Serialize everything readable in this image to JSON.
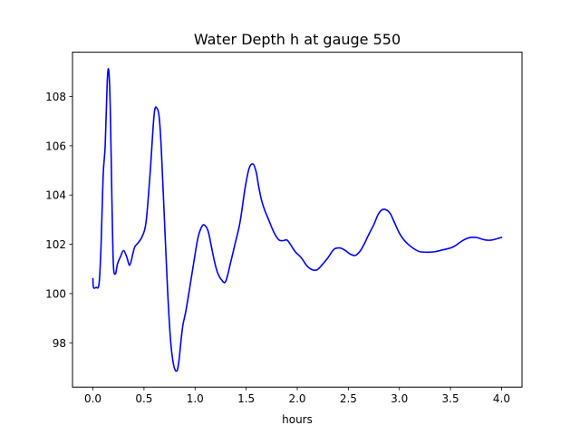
{
  "chart_data": {
    "type": "line",
    "title": "Water Depth h at gauge 550",
    "xlabel": "hours",
    "ylabel": "",
    "xlim": [
      -0.2,
      4.2
    ],
    "ylim": [
      96.2,
      109.8
    ],
    "xticks": [
      0.0,
      0.5,
      1.0,
      1.5,
      2.0,
      2.5,
      3.0,
      3.5,
      4.0
    ],
    "xtick_labels": [
      "0.0",
      "0.5",
      "1.0",
      "1.5",
      "2.0",
      "2.5",
      "3.0",
      "3.5",
      "4.0"
    ],
    "yticks": [
      98,
      100,
      102,
      104,
      106,
      108
    ],
    "ytick_labels": [
      "98",
      "100",
      "102",
      "104",
      "106",
      "108"
    ],
    "grid": false,
    "series": [
      {
        "color": "#0000ff",
        "x": [
          0.0,
          0.005,
          0.03,
          0.06,
          0.08,
          0.1,
          0.12,
          0.14,
          0.155,
          0.17,
          0.185,
          0.2,
          0.22,
          0.24,
          0.27,
          0.3,
          0.33,
          0.36,
          0.39,
          0.41,
          0.44,
          0.48,
          0.52,
          0.56,
          0.6,
          0.63,
          0.65,
          0.67,
          0.7,
          0.73,
          0.76,
          0.79,
          0.82,
          0.84,
          0.86,
          0.88,
          0.91,
          0.95,
          1.0,
          1.03,
          1.07,
          1.1,
          1.13,
          1.16,
          1.19,
          1.22,
          1.26,
          1.3,
          1.35,
          1.39,
          1.44,
          1.49,
          1.53,
          1.57,
          1.6,
          1.62,
          1.65,
          1.68,
          1.72,
          1.77,
          1.82,
          1.86,
          1.9,
          1.94,
          1.98,
          2.04,
          2.1,
          2.16,
          2.2,
          2.24,
          2.3,
          2.36,
          2.42,
          2.47,
          2.52,
          2.57,
          2.62,
          2.66,
          2.7,
          2.75,
          2.79,
          2.83,
          2.87,
          2.91,
          2.95,
          3.0,
          3.05,
          3.1,
          3.15,
          3.2,
          3.28,
          3.35,
          3.43,
          3.5,
          3.55,
          3.6,
          3.65,
          3.7,
          3.75,
          3.8,
          3.85,
          3.9,
          3.95,
          4.0
        ],
        "y": [
          100.6,
          100.25,
          100.25,
          100.4,
          102.0,
          104.8,
          106.0,
          108.6,
          109.05,
          107.5,
          104.0,
          101.2,
          100.8,
          101.2,
          101.5,
          101.75,
          101.5,
          101.15,
          101.6,
          101.9,
          102.05,
          102.3,
          102.9,
          104.9,
          107.3,
          107.5,
          107.1,
          105.8,
          103.0,
          100.2,
          98.1,
          97.1,
          96.85,
          97.2,
          98.0,
          98.7,
          99.3,
          100.3,
          101.6,
          102.3,
          102.75,
          102.75,
          102.5,
          101.9,
          101.3,
          100.85,
          100.55,
          100.5,
          101.3,
          102.0,
          102.9,
          104.3,
          105.1,
          105.25,
          104.9,
          104.4,
          103.8,
          103.4,
          103.0,
          102.5,
          102.18,
          102.15,
          102.17,
          101.95,
          101.7,
          101.45,
          101.1,
          100.95,
          100.98,
          101.15,
          101.45,
          101.8,
          101.85,
          101.75,
          101.6,
          101.55,
          101.75,
          102.05,
          102.4,
          102.8,
          103.2,
          103.4,
          103.4,
          103.25,
          102.9,
          102.45,
          102.15,
          101.95,
          101.8,
          101.7,
          101.68,
          101.7,
          101.78,
          101.85,
          101.95,
          102.1,
          102.22,
          102.28,
          102.28,
          102.22,
          102.17,
          102.17,
          102.22,
          102.28
        ]
      }
    ]
  }
}
